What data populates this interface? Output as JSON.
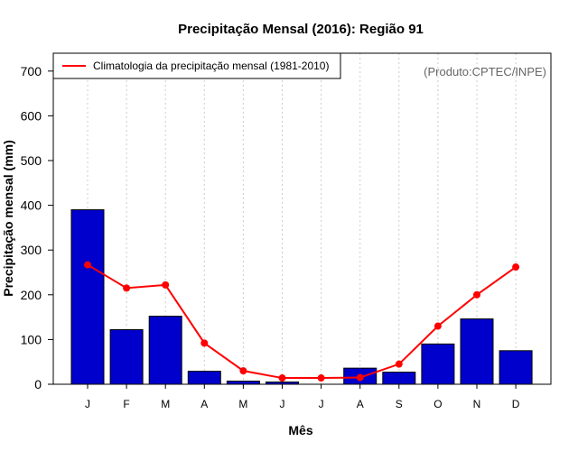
{
  "chart_data": {
    "type": "bar",
    "title": "Precipitação Mensal (2016): Região 91",
    "xlabel": "Mês",
    "ylabel": "Precipitação mensal (mm)",
    "credit": "(Produto:CPTEC/INPE)",
    "categories": [
      "J",
      "F",
      "M",
      "A",
      "M",
      "J",
      "J",
      "A",
      "S",
      "O",
      "N",
      "D"
    ],
    "ylim": [
      0,
      750
    ],
    "yticks": [
      0,
      100,
      200,
      300,
      400,
      500,
      600,
      700
    ],
    "series": [
      {
        "name": "Precipitação mensal 2016",
        "type": "bar",
        "color": "#0000CC",
        "values": [
          390,
          122,
          152,
          29,
          7,
          5,
          0,
          36,
          27,
          90,
          146,
          75
        ]
      },
      {
        "name": "Climatologia da precipitação mensal (1981-2010)",
        "type": "line",
        "color": "#FF0000",
        "values": [
          267,
          215,
          222,
          92,
          30,
          14,
          14,
          15,
          45,
          130,
          200,
          262
        ]
      }
    ],
    "legend": {
      "position": "top-left",
      "entries": [
        "Climatologia da precipitação mensal (1981-2010)"
      ]
    },
    "grid": "vertical-dotted"
  }
}
